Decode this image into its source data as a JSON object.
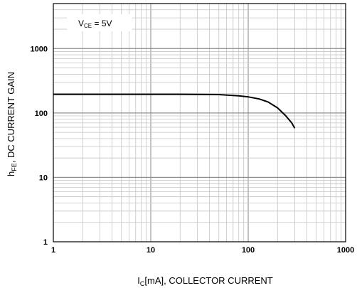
{
  "chart_data": {
    "type": "line",
    "title": "",
    "xlabel": {
      "main": "I",
      "sub": "C",
      "rest": "[mA], COLLECTOR CURRENT"
    },
    "ylabel": {
      "main": "h",
      "sub": "FE",
      "rest": ", DC CURRENT GAIN"
    },
    "x_scale": "log",
    "y_scale": "log",
    "xlim": [
      1,
      1000
    ],
    "ylim": [
      1,
      5000
    ],
    "x_ticks": [
      {
        "value": 1,
        "label": "1"
      },
      {
        "value": 10,
        "label": "10"
      },
      {
        "value": 100,
        "label": "100"
      },
      {
        "value": 1000,
        "label": "1000"
      }
    ],
    "y_ticks": [
      {
        "value": 1,
        "label": "1"
      },
      {
        "value": 10,
        "label": "10"
      },
      {
        "value": 100,
        "label": "100"
      },
      {
        "value": 1000,
        "label": "1000"
      }
    ],
    "grid": true,
    "annotation": {
      "main": "V",
      "sub": "CE",
      "rest": " = 5V"
    },
    "series": [
      {
        "x": [
          1,
          2,
          5,
          10,
          20,
          50,
          80,
          100,
          130,
          160,
          200,
          240,
          280,
          300
        ],
        "y": [
          195,
          195,
          195,
          195,
          195,
          193,
          185,
          178,
          165,
          148,
          120,
          92,
          70,
          58
        ]
      }
    ]
  }
}
